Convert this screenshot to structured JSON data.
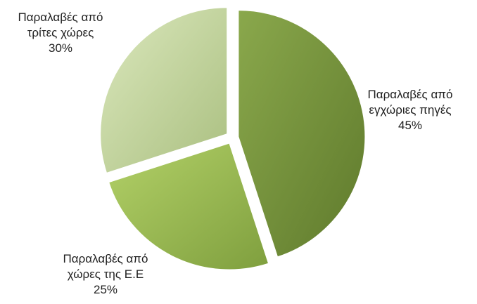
{
  "chart_data": {
    "type": "pie",
    "title": "",
    "slices": [
      {
        "label_lines": [
          "Παραλαβές από",
          "εγχώριες πηγές"
        ],
        "value": 45,
        "value_label": "45%",
        "color": "#76923c",
        "exploded": true
      },
      {
        "label_lines": [
          "Παραλαβές από",
          "χώρες της Ε.Ε"
        ],
        "value": 25,
        "value_label": "25%",
        "color": "#9bbb59",
        "exploded": true
      },
      {
        "label_lines": [
          "Παραλαβές από",
          "τρίτες χώρες"
        ],
        "value": 30,
        "value_label": "30%",
        "color": "#c3d69b",
        "exploded": true
      }
    ],
    "start_angle_deg": 0,
    "direction": "clockwise",
    "legend": "none",
    "data_labels": "outside"
  }
}
